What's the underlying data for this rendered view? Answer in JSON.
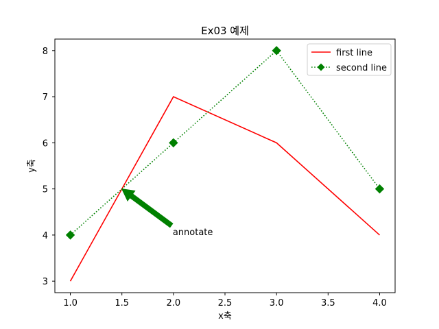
{
  "chart_data": {
    "type": "line",
    "title": "Ex03 예제",
    "xlabel": "x축",
    "ylabel": "y축",
    "xlim": [
      0.85,
      4.15
    ],
    "ylim": [
      2.75,
      8.25
    ],
    "xticks": [
      "1.0",
      "1.5",
      "2.0",
      "2.5",
      "3.0",
      "3.5",
      "4.0"
    ],
    "yticks": [
      "3",
      "4",
      "5",
      "6",
      "7",
      "8"
    ],
    "grid": false,
    "legend_position": "top-right",
    "series": [
      {
        "name": "first line",
        "x": [
          1,
          2,
          3,
          4
        ],
        "y": [
          3,
          7,
          6,
          4
        ],
        "color": "#ff0000",
        "line_style": "solid",
        "marker": "none"
      },
      {
        "name": "second line",
        "x": [
          1,
          2,
          3,
          4
        ],
        "y": [
          4,
          6,
          8,
          5
        ],
        "color": "#008000",
        "line_style": "dotted",
        "marker": "diamond"
      }
    ],
    "annotation": {
      "text": "annotate",
      "text_at": [
        2,
        4
      ],
      "arrow_to": [
        1.5,
        5
      ],
      "color": "#008000"
    }
  }
}
